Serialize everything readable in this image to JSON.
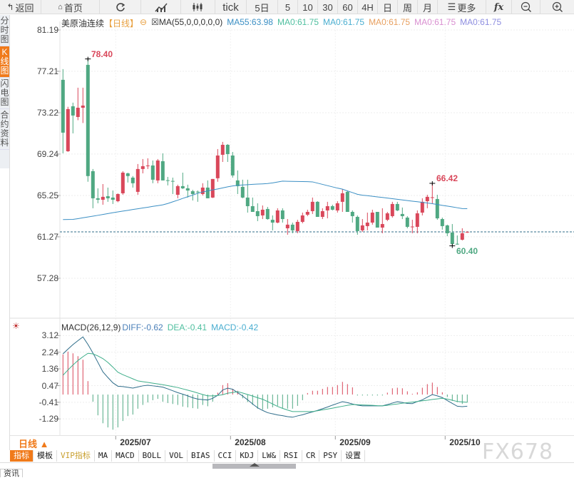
{
  "toolbar": {
    "back": "返回",
    "home": "首页",
    "tick": "tick",
    "five_day": "5日",
    "m5": "5",
    "m10": "10",
    "m30": "30",
    "m60": "60",
    "h4": "4H",
    "day": "日",
    "week": "周",
    "month": "月",
    "more": "更多",
    "icons": [
      "back-arrow-icon",
      "home-icon",
      "refresh-icon",
      "line-chart-icon",
      "candlestick-icon",
      "fx-icon",
      "zoom-out-icon",
      "zoom-in-icon"
    ]
  },
  "sidebar": {
    "items": [
      {
        "label": "分时图"
      },
      {
        "label": "K线图",
        "active": true
      },
      {
        "label": "闪电图"
      },
      {
        "label": "合约资料"
      }
    ]
  },
  "header": {
    "symbol": "美原油连续",
    "period": "【日线】",
    "ma_setting": "MA(55,0,0,0,0,0)",
    "ma55": "MA55:63.98",
    "ma0_1": "MA0:61.75",
    "ma0_2": "MA0:61.75",
    "ma0_3": "MA0:61.75",
    "ma0_4": "MA0:61.75",
    "ma0_5": "MA0:61.75"
  },
  "colors": {
    "up": "#d9475a",
    "down": "#4fa882",
    "ma55": "#3b8fc4",
    "accent": "#f07a1a",
    "diff": "#2f6d8a",
    "dea": "#3fae8a"
  },
  "macd_header": {
    "title": "MACD(26,12,9)",
    "diff": "DIFF:-0.62",
    "dea": "DEA:-0.41",
    "macd": "MACD:-0.42"
  },
  "bottom": {
    "period": "日线 ▲",
    "tabs": [
      "指标",
      "模板",
      "VIP指标",
      "MA",
      "MACD",
      "BOLL",
      "VOL",
      "BIAS",
      "CCI",
      "KDJ",
      "LW&",
      "RSI",
      "CR",
      "PSY",
      "设置"
    ],
    "news_tab": "资讯",
    "watermark": "FX678"
  },
  "chart_data": [
    {
      "type": "candlestick",
      "y_ticks": [
        "81.19",
        "77.21",
        "73.22",
        "69.24",
        "65.25",
        "61.27",
        "57.28"
      ],
      "ylim": [
        57.28,
        81.19
      ],
      "x_labels": [
        {
          "label": "2025/07",
          "candle": 12
        },
        {
          "label": "2025/08",
          "candle": 35
        },
        {
          "label": "2025/09",
          "candle": 56
        },
        {
          "label": "2025/10",
          "candle": 78
        }
      ],
      "last_price": 61.75,
      "annotations": [
        {
          "label": "78.40",
          "candle": 6,
          "type": "high"
        },
        {
          "label": "66.42",
          "candle": 75,
          "type": "high"
        },
        {
          "label": "60.40",
          "candle": 79,
          "type": "low"
        }
      ],
      "ohlc": [
        [
          76.39,
          77.42,
          69.31,
          71.3
        ],
        [
          69.51,
          73.79,
          69.45,
          73.57
        ],
        [
          73.84,
          74.19,
          71.23,
          72.95
        ],
        [
          72.81,
          75.63,
          72.5,
          73.7
        ],
        [
          73.7,
          75.63,
          72.23,
          73.91
        ],
        [
          77.83,
          78.4,
          66.57,
          67.12
        ],
        [
          67.59,
          67.8,
          64.02,
          64.98
        ],
        [
          64.98,
          65.94,
          64.5,
          64.84
        ],
        [
          64.84,
          66.35,
          64.36,
          65.12
        ],
        [
          65.18,
          66.01,
          64.64,
          64.98
        ],
        [
          65.05,
          65.73,
          64.43,
          64.84
        ],
        [
          64.7,
          65.45,
          64.6,
          65.39
        ],
        [
          65.46,
          67.59,
          65.32,
          67.45
        ],
        [
          67.38,
          67.45,
          66.5,
          67.12
        ],
        [
          66.97,
          67.12,
          66.01,
          66.43
        ],
        [
          65.6,
          68.28,
          65.32,
          67.8
        ],
        [
          67.8,
          68.76,
          67.38,
          68.07
        ],
        [
          68.07,
          68.83,
          67.8,
          68.14
        ],
        [
          68.14,
          68.62,
          66.43,
          66.77
        ],
        [
          66.7,
          68.76,
          66.43,
          68.62
        ],
        [
          68.55,
          69.31,
          66.7,
          66.7
        ],
        [
          66.72,
          67.04,
          66.22,
          66.68
        ],
        [
          66.65,
          66.97,
          65.39,
          66.61
        ],
        [
          65.32,
          66.29,
          64.98,
          66.15
        ],
        [
          66.15,
          67.45,
          65.87,
          65.94
        ],
        [
          65.94,
          66.29,
          65.05,
          65.73
        ],
        [
          65.66,
          65.8,
          64.77,
          65.39
        ],
        [
          65.62,
          65.73,
          64.64,
          65.58
        ],
        [
          65.39,
          66.43,
          65.25,
          66.01
        ],
        [
          66.01,
          66.7,
          64.98,
          64.98
        ],
        [
          65.05,
          66.84,
          65.0,
          66.84
        ],
        [
          66.91,
          69.72,
          66.57,
          69.1
        ],
        [
          69.17,
          70.41,
          68.48,
          70.13
        ],
        [
          70.13,
          70.2,
          68.48,
          69.24
        ],
        [
          69.1,
          69.44,
          66.97,
          67.18
        ],
        [
          66.7,
          67.66,
          65.39,
          66.15
        ],
        [
          66.08,
          66.77,
          64.98,
          65.05
        ],
        [
          65.05,
          66.77,
          63.6,
          64.22
        ],
        [
          64.22,
          65.05,
          63.67,
          63.67
        ],
        [
          63.74,
          64.5,
          62.78,
          63.26
        ],
        [
          63.33,
          64.29,
          62.98,
          63.88
        ],
        [
          63.95,
          64.15,
          62.91,
          62.98
        ],
        [
          62.91,
          63.33,
          61.89,
          62.64
        ],
        [
          62.64,
          64.02,
          62.57,
          63.81
        ],
        [
          63.81,
          64.02,
          62.64,
          62.98
        ],
        [
          62.09,
          62.98,
          61.47,
          62.44
        ],
        [
          62.44,
          62.64,
          61.61,
          61.89
        ],
        [
          61.82,
          62.91,
          61.61,
          62.71
        ],
        [
          62.71,
          63.6,
          62.57,
          63.33
        ],
        [
          63.4,
          63.88,
          63.26,
          63.67
        ],
        [
          63.74,
          65.05,
          63.47,
          64.64
        ],
        [
          64.64,
          64.7,
          63.19,
          63.19
        ],
        [
          63.19,
          64.02,
          62.98,
          63.74
        ],
        [
          63.81,
          64.64,
          63.05,
          64.22
        ],
        [
          64.22,
          64.36,
          63.81,
          63.88
        ],
        [
          63.81,
          64.7,
          63.6,
          64.5
        ],
        [
          64.64,
          65.87,
          63.67,
          65.46
        ],
        [
          65.6,
          65.73,
          63.67,
          63.67
        ],
        [
          63.67,
          63.81,
          62.64,
          63.26
        ],
        [
          63.19,
          63.33,
          61.47,
          61.82
        ],
        [
          61.89,
          62.98,
          61.75,
          62.37
        ],
        [
          62.3,
          63.6,
          61.89,
          62.64
        ],
        [
          62.64,
          63.88,
          62.44,
          63.6
        ],
        [
          63.67,
          63.67,
          62.16,
          62.16
        ],
        [
          62.16,
          64.02,
          61.61,
          62.5
        ],
        [
          62.91,
          63.67,
          62.78,
          63.53
        ],
        [
          63.26,
          64.64,
          63.12,
          64.43
        ],
        [
          64.43,
          64.64,
          63.74,
          63.81
        ],
        [
          63.47,
          64.09,
          62.98,
          63.26
        ],
        [
          63.12,
          63.26,
          62.09,
          62.23
        ],
        [
          62.2,
          62.91,
          61.61,
          62.26
        ],
        [
          62.23,
          63.81,
          61.61,
          63.53
        ],
        [
          63.6,
          64.98,
          63.33,
          64.64
        ],
        [
          64.7,
          65.32,
          64.02,
          65.12
        ],
        [
          65.02,
          66.42,
          64.5,
          65.08
        ],
        [
          64.91,
          65.32,
          62.91,
          63.05
        ],
        [
          62.98,
          63.12,
          61.96,
          62.3
        ],
        [
          62.37,
          62.44,
          61.33,
          61.61
        ],
        [
          61.68,
          62.5,
          60.4,
          60.58
        ],
        [
          60.6,
          61.4,
          60.51,
          60.55
        ],
        [
          60.99,
          62.09,
          60.92,
          61.61
        ],
        [
          61.7,
          61.8,
          61.65,
          61.75
        ]
      ],
      "ma55": [
        62.93,
        62.94,
        62.95,
        63.02,
        63.1,
        63.18,
        63.26,
        63.34,
        63.42,
        63.51,
        63.59,
        63.67,
        63.75,
        63.82,
        63.9,
        63.97,
        64.05,
        64.12,
        64.2,
        64.27,
        64.35,
        64.48,
        64.64,
        64.8,
        64.97,
        65.13,
        65.29,
        65.46,
        65.59,
        65.69,
        65.79,
        65.88,
        65.98,
        66.08,
        66.17,
        66.23,
        66.26,
        66.29,
        66.32,
        66.35,
        66.37,
        66.4,
        66.46,
        66.55,
        66.63,
        66.62,
        66.61,
        66.6,
        66.59,
        66.58,
        66.56,
        66.44,
        66.32,
        66.2,
        66.08,
        65.96,
        65.86,
        65.69,
        65.53,
        65.36,
        65.28,
        65.23,
        65.17,
        65.11,
        65.06,
        65.0,
        64.94,
        64.88,
        64.82,
        64.76,
        64.7,
        64.65,
        64.59,
        64.53,
        64.46,
        64.38,
        64.3,
        64.23,
        64.15,
        64.07,
        63.99,
        63.98
      ]
    },
    {
      "type": "macd",
      "y_ticks": [
        "3.12",
        "2.24",
        "1.36",
        "0.47",
        "-0.41",
        "-1.29"
      ],
      "ylim": [
        -1.9,
        3.2
      ],
      "diff": [
        2.15,
        2.4,
        2.64,
        2.85,
        3.05,
        2.65,
        2.2,
        1.7,
        1.2,
        0.9,
        0.62,
        0.44,
        0.42,
        0.38,
        0.34,
        0.4,
        0.46,
        0.49,
        0.46,
        0.43,
        0.39,
        0.3,
        0.2,
        0.1,
        0.02,
        -0.07,
        -0.17,
        -0.24,
        -0.27,
        -0.29,
        -0.2,
        -0.04,
        0.24,
        0.34,
        0.28,
        0.1,
        -0.08,
        -0.28,
        -0.5,
        -0.7,
        -0.84,
        -0.96,
        -1.02,
        -1.08,
        -1.12,
        -1.17,
        -1.2,
        -1.13,
        -1.07,
        -0.99,
        -0.92,
        -0.84,
        -0.75,
        -0.66,
        -0.56,
        -0.47,
        -0.38,
        -0.43,
        -0.5,
        -0.56,
        -0.6,
        -0.6,
        -0.6,
        -0.6,
        -0.6,
        -0.53,
        -0.45,
        -0.38,
        -0.42,
        -0.47,
        -0.48,
        -0.37,
        -0.28,
        -0.14,
        0,
        -0.07,
        -0.16,
        -0.32,
        -0.47,
        -0.62,
        -0.64,
        -0.62
      ],
      "dea": [
        1.02,
        1.3,
        1.56,
        1.8,
        2.0,
        2.18,
        2.15,
        2.04,
        1.9,
        1.7,
        1.45,
        1.18,
        1.05,
        0.94,
        0.83,
        0.72,
        0.68,
        0.64,
        0.6,
        0.56,
        0.52,
        0.47,
        0.42,
        0.37,
        0.3,
        0.23,
        0.16,
        0.08,
        0.0,
        -0.07,
        -0.07,
        -0.05,
        -0.01,
        0.07,
        0.11,
        0.15,
        0.08,
        0.0,
        -0.08,
        -0.17,
        -0.25,
        -0.37,
        -0.5,
        -0.63,
        -0.73,
        -0.82,
        -0.9,
        -0.9,
        -0.9,
        -0.9,
        -0.9,
        -0.86,
        -0.81,
        -0.77,
        -0.72,
        -0.67,
        -0.62,
        -0.57,
        -0.53,
        -0.54,
        -0.55,
        -0.56,
        -0.57,
        -0.59,
        -0.6,
        -0.57,
        -0.53,
        -0.5,
        -0.46,
        -0.43,
        -0.4,
        -0.37,
        -0.33,
        -0.3,
        -0.26,
        -0.23,
        -0.2,
        -0.24,
        -0.3,
        -0.37,
        -0.39,
        -0.41
      ],
      "macd": [
        2.12,
        2.27,
        2.18,
        2.03,
        1.84,
        0.71,
        -0.38,
        -1.1,
        -1.52,
        -1.74,
        -1.86,
        -1.74,
        -1.4,
        -1.14,
        -1.06,
        -0.75,
        -0.55,
        -0.42,
        -0.3,
        -0.23,
        -0.38,
        -0.45,
        -0.5,
        -0.55,
        -0.64,
        -0.68,
        -0.72,
        -0.75,
        -0.55,
        -0.62,
        -0.38,
        0.1,
        0.5,
        0.6,
        0.3,
        0.2,
        -0.2,
        -0.4,
        -0.55,
        -0.75,
        -0.8,
        -0.75,
        -0.68,
        -0.6,
        -0.72,
        -0.75,
        -0.75,
        -0.6,
        -0.3,
        0.08,
        0.2,
        0.2,
        0.3,
        0.4,
        0.4,
        0.5,
        0.67,
        0.55,
        0.38,
        -0.05,
        -0.05,
        -0.05,
        -0.05,
        -0.05,
        -0.05,
        0.1,
        0.33,
        0.36,
        0.33,
        0.17,
        0.04,
        0.12,
        0.36,
        0.55,
        0.63,
        0.4,
        0.12,
        -0.13,
        -0.34,
        -0.4,
        -0.5,
        -0.42
      ]
    }
  ]
}
